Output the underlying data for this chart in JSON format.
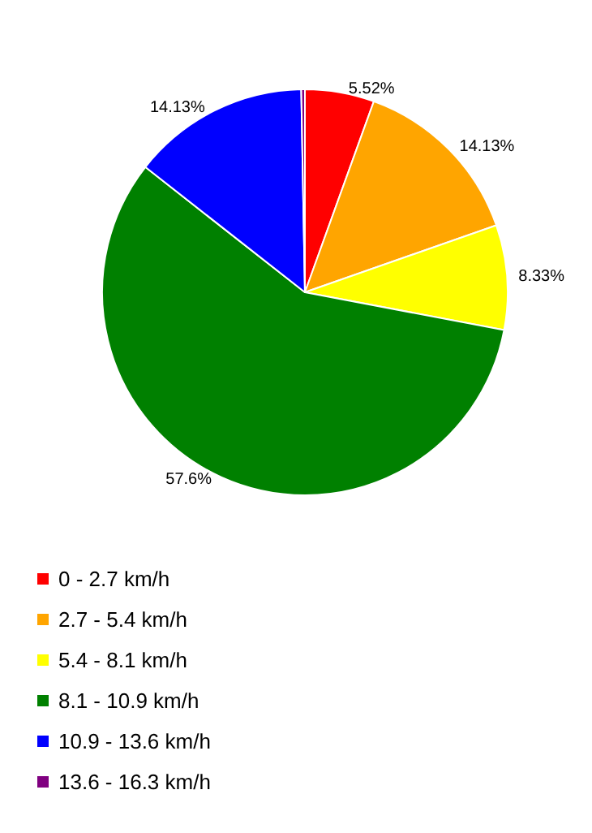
{
  "chart_data": {
    "type": "pie",
    "categories": [
      "0 - 2.7 km/h",
      "2.7 - 5.4 km/h",
      "5.4 - 8.1 km/h",
      "8.1 - 10.9 km/h",
      "10.9 - 13.6 km/h",
      "13.6 - 16.3 km/h"
    ],
    "values": [
      5.52,
      14.13,
      8.33,
      57.6,
      14.13,
      0.29
    ],
    "value_labels": [
      "5.52%",
      "14.13%",
      "8.33%",
      "57.6%",
      "14.13%",
      null
    ],
    "colors": [
      "#ff0000",
      "#ffa500",
      "#ffff00",
      "#008000",
      "#0000ff",
      "#800080"
    ],
    "legend": "bottom left"
  }
}
